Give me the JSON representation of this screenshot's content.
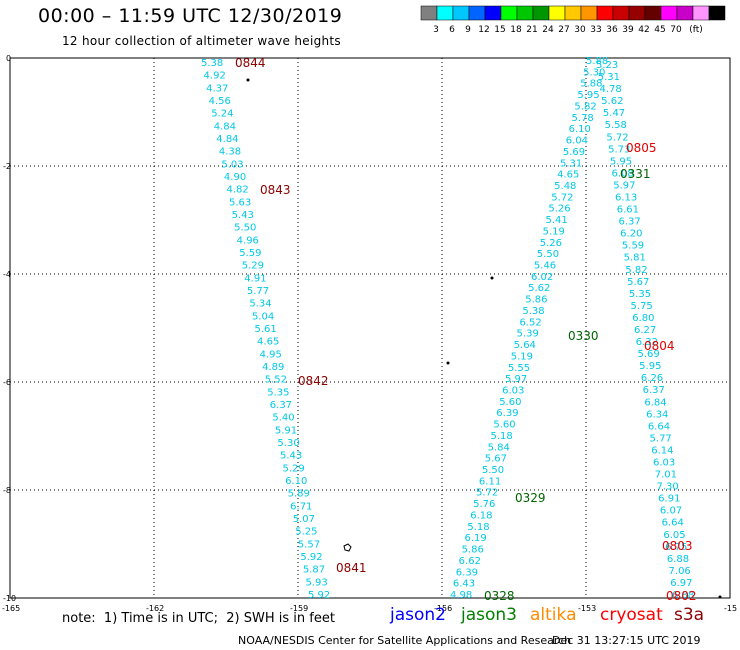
{
  "header": {
    "title": "00:00 – 11:59 UTC 12/30/2019",
    "subtitle": "12 hour collection of altimeter wave heights"
  },
  "scale": {
    "colors": [
      "#808080",
      "#00ffff",
      "#00c8ff",
      "#0064ff",
      "#0000ff",
      "#00ff00",
      "#00c800",
      "#009600",
      "#ffff00",
      "#ffc800",
      "#ff9600",
      "#ff0000",
      "#c80000",
      "#960000",
      "#640000",
      "#ff00ff",
      "#c800c8",
      "#ff96ff",
      "#000000"
    ],
    "labels": [
      "3",
      "6",
      "9",
      "12",
      "15",
      "18",
      "21",
      "24",
      "27",
      "30",
      "33",
      "36",
      "39",
      "42",
      "45",
      "70",
      "(ft)"
    ]
  },
  "axes": {
    "x_ticks": [
      "-165",
      "-162",
      "-159",
      "-156",
      "-153",
      "-15"
    ],
    "y_ticks": [
      "0",
      "-2",
      "-4",
      "-6",
      "-8",
      "-10"
    ]
  },
  "tracks": [
    {
      "name": "track-a",
      "values": [
        "5.38",
        "4.92",
        "4.37",
        "4.56",
        "5.24",
        "4.84",
        "4.84",
        "4.38",
        "5.03",
        "4.90",
        "4.82",
        "5.63",
        "5.43",
        "5.50",
        "4.96",
        "5.59",
        "5.29",
        "4.91",
        "5.77",
        "5.34",
        "5.04",
        "5.61",
        "4.65",
        "4.95",
        "4.89",
        "5.52",
        "5.35",
        "6.37",
        "5.40",
        "5.91",
        "5.30",
        "5.43",
        "5.29",
        "6.10",
        "5.89",
        "6.71",
        "5.07",
        "5.25",
        "5.57",
        "5.92",
        "5.87",
        "5.93",
        "5.92"
      ]
    },
    {
      "name": "track-b",
      "values": [
        "4.98",
        "6.43",
        "6.39",
        "6.62",
        "5.86",
        "6.19",
        "5.18",
        "6.18",
        "5.76",
        "5.72",
        "6.11",
        "5.50",
        "5.67",
        "5.84",
        "5.18",
        "5.60",
        "6.39",
        "5.60",
        "6.03",
        "5.97",
        "5.55",
        "5.19",
        "5.64",
        "5.39",
        "6.52",
        "5.38",
        "5.86",
        "5.62",
        "6.02",
        "5.46",
        "5.50",
        "5.26",
        "5.19",
        "5.41",
        "5.26",
        "5.72",
        "5.48",
        "4.65",
        "5.31",
        "5.69",
        "6.04",
        "6.10",
        "5.78",
        "5.82",
        "5.95",
        "5.88",
        "5.30",
        "5.88"
      ]
    },
    {
      "name": "track-c",
      "values": [
        "5.23",
        "5.31",
        "4.78",
        "5.62",
        "5.47",
        "5.58",
        "5.72",
        "5.73",
        "5.95",
        "6.08",
        "5.97",
        "6.13",
        "6.61",
        "6.37",
        "6.20",
        "5.59",
        "5.81",
        "5.82",
        "5.67",
        "5.35",
        "5.75",
        "6.80",
        "6.27",
        "6.32",
        "5.69",
        "5.95",
        "6.26",
        "6.37",
        "6.84",
        "6.34",
        "6.64",
        "5.77",
        "6.14",
        "6.03",
        "7.01",
        "7.30",
        "6.91",
        "6.07",
        "6.64",
        "6.05",
        "6.75",
        "6.88",
        "7.06",
        "6.97",
        "6.88"
      ]
    }
  ],
  "time_labels": [
    {
      "text": "0844",
      "color": "#8b0000"
    },
    {
      "text": "0843",
      "color": "#8b0000"
    },
    {
      "text": "0842",
      "color": "#8b0000"
    },
    {
      "text": "0841",
      "color": "#8b0000"
    },
    {
      "text": "0805",
      "color": "#e00000"
    },
    {
      "text": "0804",
      "color": "#e00000"
    },
    {
      "text": "0803",
      "color": "#e00000"
    },
    {
      "text": "0802",
      "color": "#e00000"
    },
    {
      "text": "0331",
      "color": "#006400"
    },
    {
      "text": "0330",
      "color": "#006400"
    },
    {
      "text": "0329",
      "color": "#006400"
    },
    {
      "text": "0328",
      "color": "#006400"
    }
  ],
  "footer": {
    "note": "note:  1) Time is in UTC;  2) SWH is in feet",
    "satellites": [
      {
        "name": "jason2",
        "color": "#0000ff"
      },
      {
        "name": "jason3",
        "color": "#008000"
      },
      {
        "name": "altika",
        "color": "#ff8c00"
      },
      {
        "name": "cryosat",
        "color": "#ff0000"
      },
      {
        "name": "s3a",
        "color": "#8b0000"
      }
    ],
    "credit": "NOAA/NESDIS Center for Satellite Applications and Research",
    "timestamp": "Dec 31 13:27:15 UTC 2019"
  }
}
